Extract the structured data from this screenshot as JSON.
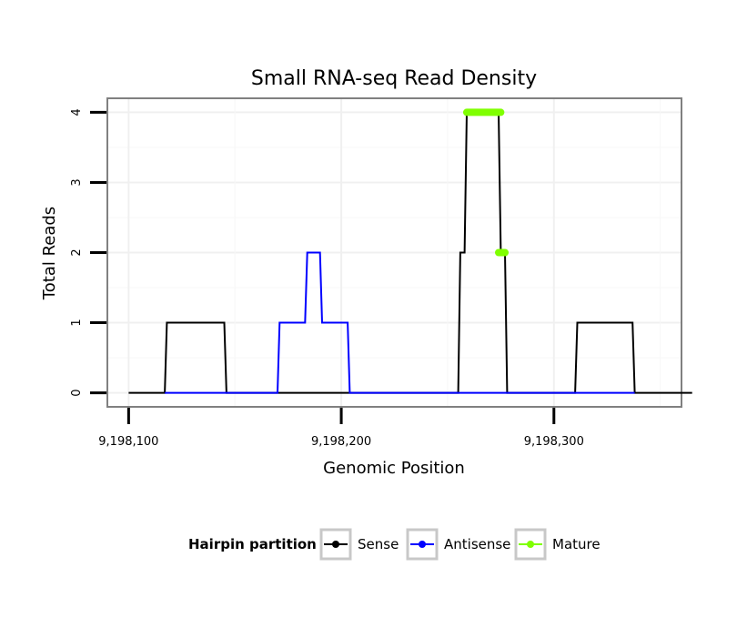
{
  "chart_data": {
    "type": "line",
    "title": "Small RNA-seq Read Density",
    "xlabel": "Genomic Position",
    "ylabel": "Total Reads",
    "xlim": [
      9198090,
      9198360
    ],
    "ylim": [
      -0.2,
      4.2
    ],
    "x_ticks": [
      {
        "value": 9198100,
        "label": "9,198,100"
      },
      {
        "value": 9198200,
        "label": "9,198,200"
      },
      {
        "value": 9198300,
        "label": "9,198,300"
      }
    ],
    "y_ticks": [
      {
        "value": 0,
        "label": "0"
      },
      {
        "value": 1,
        "label": "1"
      },
      {
        "value": 2,
        "label": "2"
      },
      {
        "value": 3,
        "label": "3"
      },
      {
        "value": 4,
        "label": "4"
      }
    ],
    "grid": true,
    "legend_title": "Hairpin partition",
    "legend_position": "bottom",
    "series": [
      {
        "name": "Sense",
        "color": "#000000",
        "kind": "line",
        "points": [
          [
            9198100,
            0
          ],
          [
            9198117,
            0
          ],
          [
            9198118,
            1
          ],
          [
            9198145,
            1
          ],
          [
            9198146,
            0
          ],
          [
            9198255,
            0
          ],
          [
            9198256,
            2
          ],
          [
            9198258,
            2
          ],
          [
            9198259,
            4
          ],
          [
            9198274,
            4
          ],
          [
            9198275,
            2
          ],
          [
            9198277,
            2
          ],
          [
            9198278,
            0
          ],
          [
            9198310,
            0
          ],
          [
            9198311,
            1
          ],
          [
            9198337,
            1
          ],
          [
            9198338,
            0
          ],
          [
            9198365,
            0
          ]
        ]
      },
      {
        "name": "Antisense",
        "color": "#0000ff",
        "kind": "line",
        "points": [
          [
            9198117,
            0
          ],
          [
            9198146,
            0
          ],
          [
            9198170,
            0
          ],
          [
            9198171,
            1
          ],
          [
            9198183,
            1
          ],
          [
            9198184,
            2
          ],
          [
            9198190,
            2
          ],
          [
            9198191,
            1
          ],
          [
            9198203,
            1
          ],
          [
            9198204,
            0
          ],
          [
            9198255,
            0
          ],
          [
            9198278,
            0
          ],
          [
            9198310,
            0
          ],
          [
            9198338,
            0
          ]
        ]
      },
      {
        "name": "Mature",
        "color": "#7fff00",
        "kind": "segments",
        "segments": [
          [
            [
              9198259,
              4
            ],
            [
              9198275,
              4
            ]
          ],
          [
            [
              9198274,
              2
            ],
            [
              9198277,
              2
            ]
          ]
        ]
      }
    ]
  }
}
